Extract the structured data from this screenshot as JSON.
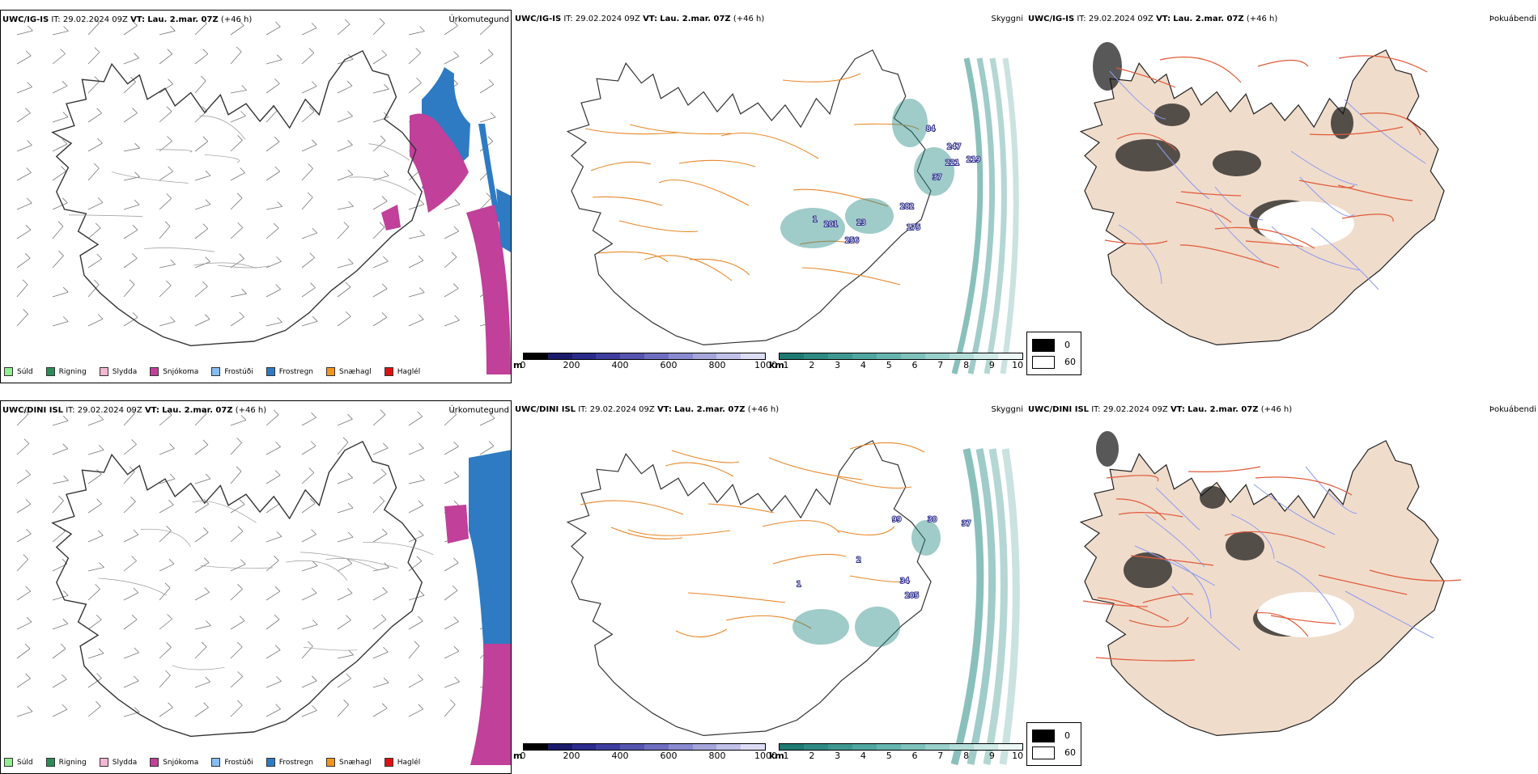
{
  "rows": [
    {
      "model": "UWC/IG-IS",
      "it_label": "IT:",
      "it_value": "29.02.2024 09Z",
      "vt_label": "VT:",
      "vt_value": "Lau. 2.mar. 07Z",
      "lead": "(+46 h)",
      "titles": [
        "Úrkomutegund",
        "Skyggni",
        "Þokuábendi"
      ],
      "vis_labels": [
        "84",
        "247",
        "221",
        "37",
        "219",
        "282",
        "201",
        "13",
        "256",
        "175",
        "1"
      ]
    },
    {
      "model": "UWC/DINI ISL",
      "it_label": "IT:",
      "it_value": "29.02.2024 09Z",
      "vt_label": "VT:",
      "vt_value": "Lau. 2.mar. 07Z",
      "lead": "(+46 h)",
      "titles": [
        "Úrkomutegund",
        "Skyggni",
        "Þokuábendi"
      ],
      "vis_labels": [
        "99",
        "30",
        "37",
        "2",
        "34",
        "205",
        "1"
      ]
    }
  ],
  "precip_legend": [
    {
      "label": "Súld",
      "color": "#90ee90"
    },
    {
      "label": "Rigning",
      "color": "#2e8b57"
    },
    {
      "label": "Slydda",
      "color": "#f4b6d2"
    },
    {
      "label": "Snjókoma",
      "color": "#c0409a"
    },
    {
      "label": "Frostúði",
      "color": "#87bdf0"
    },
    {
      "label": "Frostregn",
      "color": "#2e7bc4"
    },
    {
      "label": "Snæhagl",
      "color": "#f0961e"
    },
    {
      "label": "Haglél",
      "color": "#e01010"
    }
  ],
  "height_bar": {
    "unit": "m",
    "ticks": [
      "0",
      "200",
      "400",
      "600",
      "800",
      "1000"
    ],
    "colors": [
      "#000000",
      "#1b1b6b",
      "#2b2b8c",
      "#3e3ea0",
      "#5555b0",
      "#6e6ec0",
      "#8a8ad0",
      "#a5a5dc",
      "#c0c0e8",
      "#dcdcf4"
    ]
  },
  "km_bar": {
    "unit": "km",
    "ticks": [
      "1",
      "2",
      "3",
      "4",
      "5",
      "6",
      "7",
      "8",
      "9",
      "10"
    ],
    "colors": [
      "#1e7a72",
      "#2e8a82",
      "#3e9892",
      "#50a6a0",
      "#66b4ae",
      "#7ec2bc",
      "#98d0cb",
      "#b3ddd9",
      "#cfeae7",
      "#ecf7f6"
    ]
  },
  "fog_legend": [
    {
      "label": "0",
      "color": "#000000"
    },
    {
      "label": "60",
      "color": "#ffffff"
    }
  ],
  "colors": {
    "coast": "#333333",
    "road_orange": "#e8882a",
    "fog_land": "#f0dccb",
    "fog_road": "#e05a3a",
    "fog_river": "#8c9cf0",
    "snow": "#c0409a",
    "frz_rain": "#2e7bc4",
    "vis": "#2a8c84"
  }
}
